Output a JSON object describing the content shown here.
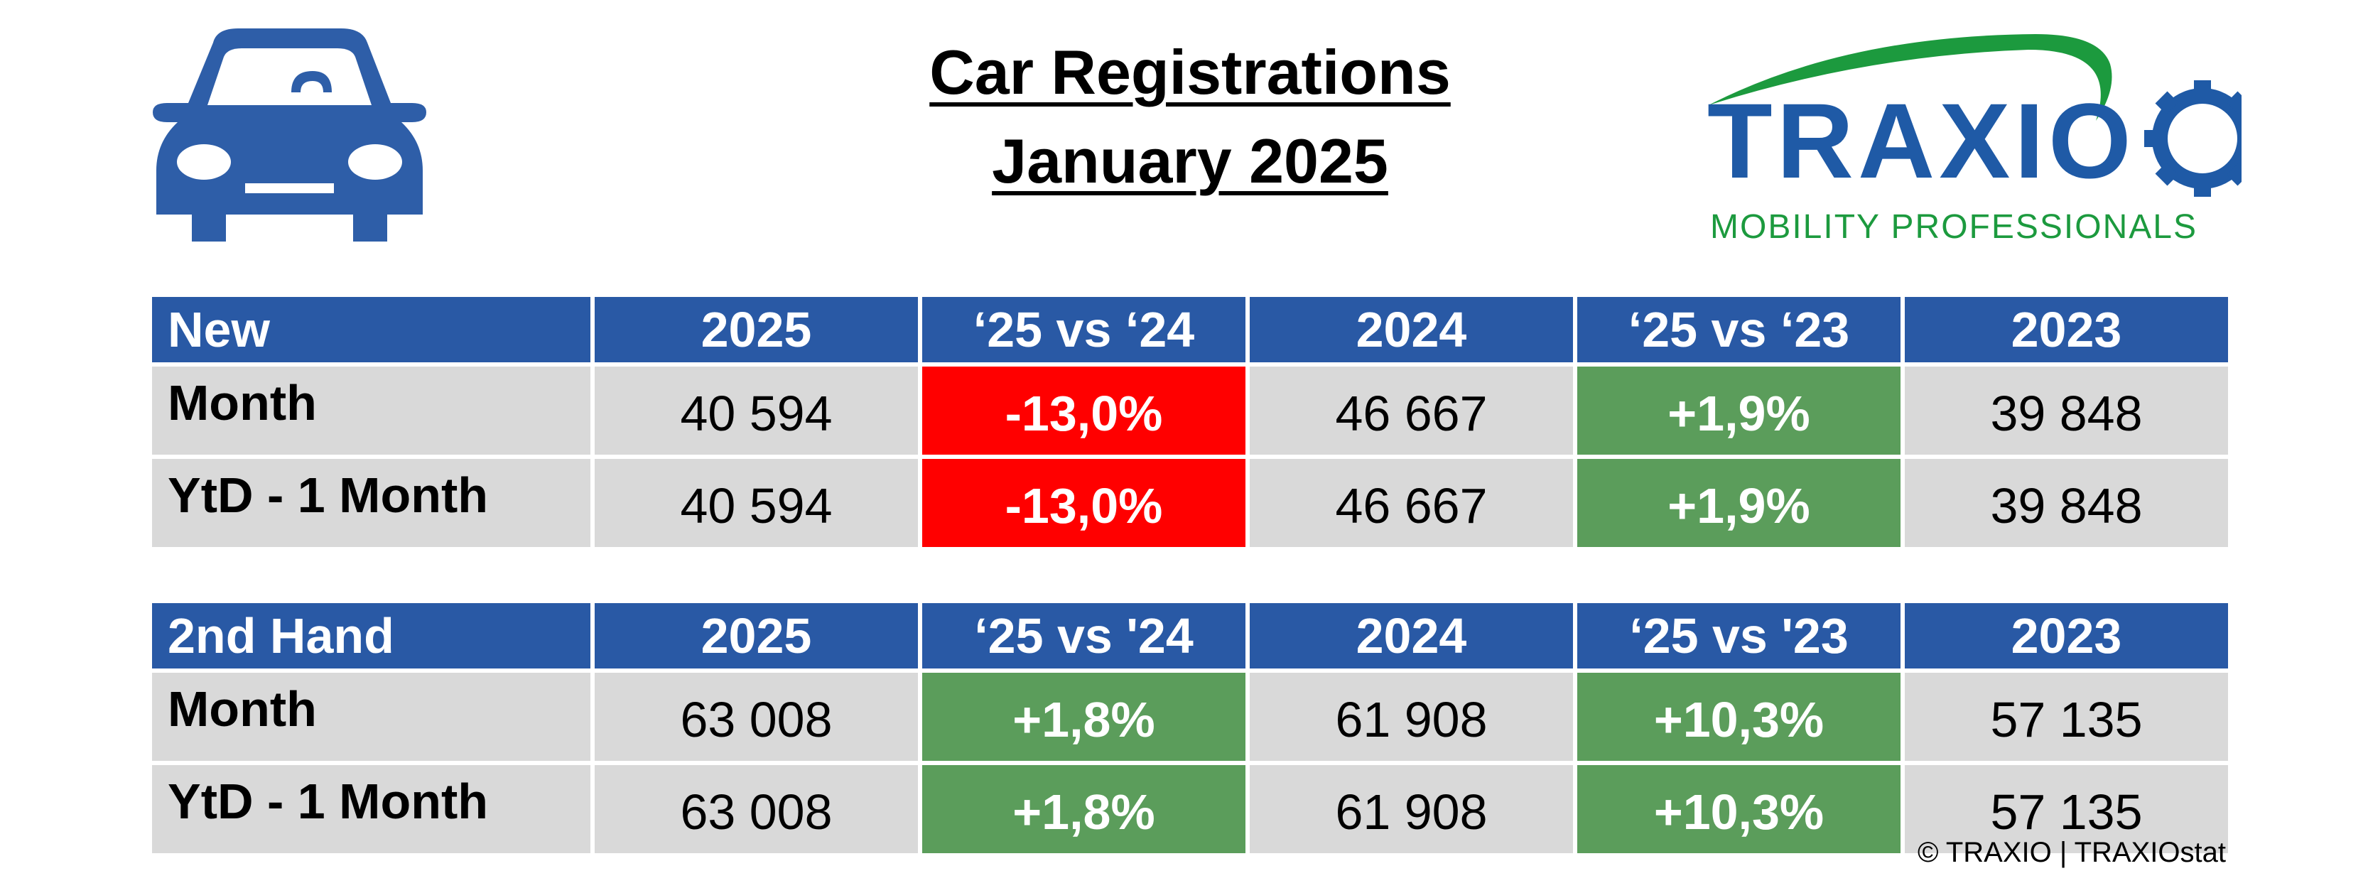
{
  "header": {
    "title_line1": "Car Registrations",
    "title_line2": "January 2025",
    "icon": "car-icon"
  },
  "logo": {
    "wordmark": "TRAXIO",
    "tagline": "MOBILITY PROFESSIONALS",
    "blue": "#1f5aa6",
    "green": "#1c9a3e"
  },
  "colors": {
    "header_blue": "#2959a5",
    "negative_red": "#ff0000",
    "positive_green": "#5b9d5b",
    "cell_grey": "#d9d9d9"
  },
  "tables": [
    {
      "columns": [
        "New",
        "2025",
        "‘25 vs ‘24",
        "2024",
        "‘25 vs ‘23",
        "2023"
      ],
      "rows": [
        {
          "label": "Month",
          "v2025": "40 594",
          "vs24": "-13,0%",
          "v2024": "46 667",
          "vs23": "+1,9%",
          "v2023": "39 848"
        },
        {
          "label": "YtD - 1 Month",
          "v2025": "40 594",
          "vs24": "-13,0%",
          "v2024": "46 667",
          "vs23": "+1,9%",
          "v2023": "39 848"
        }
      ]
    },
    {
      "columns": [
        "2nd Hand",
        "2025",
        "‘25 vs '24",
        "2024",
        "‘25 vs '23",
        "2023"
      ],
      "rows": [
        {
          "label": "Month",
          "v2025": "63 008",
          "vs24": "+1,8%",
          "v2024": "61 908",
          "vs23": "+10,3%",
          "v2023": "57 135"
        },
        {
          "label": "YtD - 1 Month",
          "v2025": "63 008",
          "vs24": "+1,8%",
          "v2024": "61 908",
          "vs23": "+10,3%",
          "v2023": "57 135"
        }
      ]
    }
  ],
  "footer": {
    "copyright": "© TRAXIO | TRAXIOstat"
  }
}
